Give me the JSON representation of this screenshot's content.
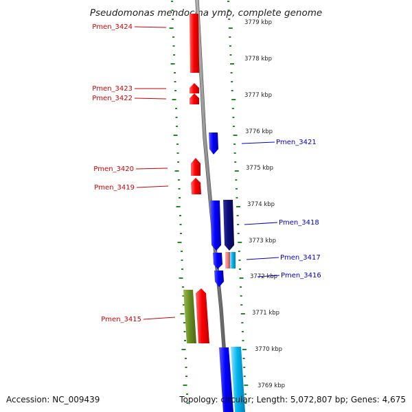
{
  "title": "Pseudomonas mendocina ymp, complete genome",
  "accession": "Accession: NC_009439",
  "summary": "Topology: circular; Length: 5,072,807 bp; Genes: 4,675",
  "colors": {
    "forward_gene": "#ff0000",
    "reverse_gene": "#0000ff",
    "dark_blue_gene": "#0b0b7a",
    "light_blue_gene": "#00b4ee",
    "pink_gene": "#f08080",
    "olive_gene": "#6b8e23",
    "tick": "#1f8a1f",
    "backbone": "#808080"
  },
  "ruler": {
    "unit": "kbp",
    "ticks": [
      "3779 kbp",
      "3778 kbp",
      "3777 kbp",
      "3776 kbp",
      "3775 kbp",
      "3774 kbp",
      "3773 kbp",
      "3772 kbp",
      "3771 kbp",
      "3770 kbp",
      "3769 kbp"
    ]
  },
  "gene_labels": [
    {
      "name": "Pmen_3424",
      "strand": "forward"
    },
    {
      "name": "Pmen_3423",
      "strand": "forward"
    },
    {
      "name": "Pmen_3422",
      "strand": "forward"
    },
    {
      "name": "Pmen_3421",
      "strand": "reverse"
    },
    {
      "name": "Pmen_3420",
      "strand": "forward"
    },
    {
      "name": "Pmen_3419",
      "strand": "forward"
    },
    {
      "name": "Pmen_3418",
      "strand": "reverse"
    },
    {
      "name": "Pmen_3417",
      "strand": "reverse"
    },
    {
      "name": "Pmen_3416",
      "strand": "reverse"
    },
    {
      "name": "Pmen_3415",
      "strand": "forward"
    }
  ]
}
